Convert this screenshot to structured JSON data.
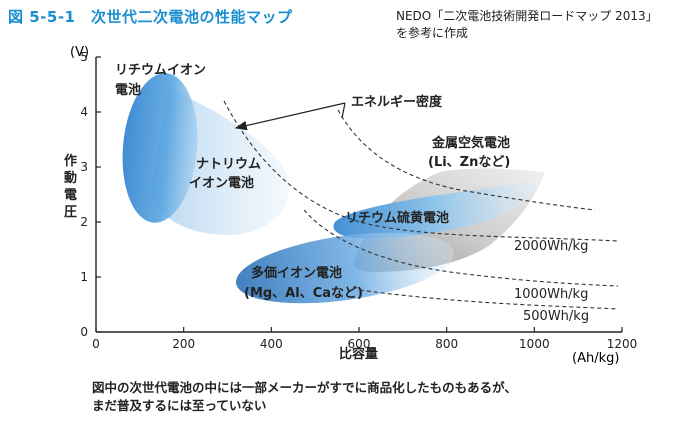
{
  "header": {
    "title": "図 5-5-1　次世代二次電池の性能マップ",
    "source": [
      "NEDO「二次電池技術開発ロードマップ 2013」",
      "を参考に作成"
    ]
  },
  "footer": {
    "caption": [
      "図中の次世代電池の中には一部メーカーがすでに商品化したものもあるが、",
      "まだ普及するには至っていない"
    ]
  },
  "chart_data": {
    "type": "scatter",
    "title": "次世代二次電池の性能マップ",
    "xlabel": "比容量",
    "x_unit": "(Ah/kg)",
    "ylabel": "作動電圧",
    "y_unit": "(V)",
    "xlim": [
      0,
      1200
    ],
    "ylim": [
      0,
      5
    ],
    "x_ticks": [
      0,
      200,
      400,
      600,
      800,
      1000,
      1200
    ],
    "y_ticks": [
      0,
      1,
      2,
      3,
      4,
      5
    ],
    "grid": false,
    "regions": [
      {
        "name": "リチウムイオン電池",
        "label_lines": [
          "リチウムイオン",
          "電池"
        ],
        "x_range": [
          60,
          220
        ],
        "y_range": [
          3.1,
          4.6
        ],
        "color": "#3d8fd6"
      },
      {
        "name": "ナトリウムイオン電池",
        "label_lines": [
          "ナトリウム",
          "イオン電池"
        ],
        "x_range": [
          140,
          430
        ],
        "y_range": [
          1.95,
          4.65
        ],
        "color": "#b9d8f2"
      },
      {
        "name": "金属空気電池 (Li、Znなど)",
        "label_lines": [
          "金属空気電池",
          "(Li、Znなど)"
        ],
        "x_range": [
          540,
          1020
        ],
        "y_range": [
          1.1,
          3.0
        ],
        "color": "#b0b0b0"
      },
      {
        "name": "リチウム硫黄電池",
        "label_lines": [
          "リチウム硫黄電池"
        ],
        "x_range": [
          540,
          1020
        ],
        "y_range": [
          1.8,
          2.8
        ],
        "color": "#8cc2ea"
      },
      {
        "name": "多価イオン電池 (Mg、Al、Caなど)",
        "label_lines": [
          "多価イオン電池",
          "(Mg、Al、Caなど)"
        ],
        "x_range": [
          330,
          780
        ],
        "y_range": [
          0.6,
          1.9
        ],
        "color": "#2f7cc4"
      }
    ],
    "energy_density_curves": [
      {
        "label": "2000Wh/kg",
        "wh_per_kg": 2000
      },
      {
        "label": "1000Wh/kg",
        "wh_per_kg": 1000
      },
      {
        "label": "500Wh/kg",
        "wh_per_kg": 500
      }
    ],
    "annotations": [
      {
        "text": "エネルギー密度",
        "meaning": "arrow pointing toward higher energy density"
      }
    ]
  }
}
